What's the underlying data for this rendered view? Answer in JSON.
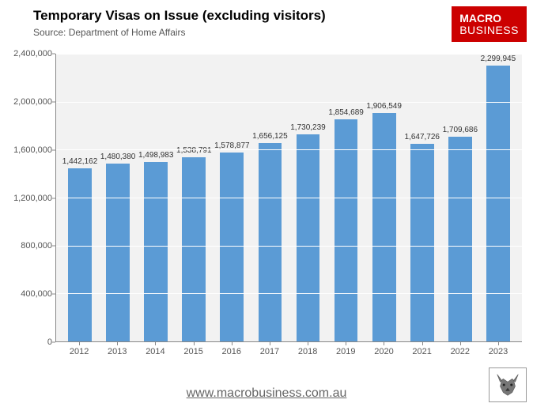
{
  "header": {
    "title": "Temporary Visas on Issue (excluding visitors)",
    "title_fontsize": 17,
    "subtitle": "Source: Department of Home Affairs",
    "subtitle_fontsize": 12
  },
  "logo": {
    "line1": "MACRO",
    "line2": "BUSINESS",
    "bg": "#cc0000",
    "fg": "#ffffff"
  },
  "chart": {
    "type": "bar",
    "categories": [
      "2012",
      "2013",
      "2014",
      "2015",
      "2016",
      "2017",
      "2018",
      "2019",
      "2020",
      "2021",
      "2022",
      "2023"
    ],
    "values": [
      1442162,
      1480380,
      1498983,
      1538791,
      1578877,
      1656125,
      1730239,
      1854689,
      1906549,
      1647726,
      1709686,
      2299945
    ],
    "value_labels": [
      "1,442,162",
      "1,480,380",
      "1,498,983",
      "1,538,791",
      "1,578,877",
      "1,656,125",
      "1,730,239",
      "1,854,689",
      "1,906,549",
      "1,647,726",
      "1,709,686",
      "2,299,945"
    ],
    "bar_color": "#5b9bd5",
    "plot_bg": "#f2f2f2",
    "grid_color": "#ffffff",
    "axis_color": "#888888",
    "ylim": [
      0,
      2400000
    ],
    "ytick_step": 400000,
    "ytick_labels": [
      "0",
      "400,000",
      "800,000",
      "1,200,000",
      "1,600,000",
      "2,000,000",
      "2,400,000"
    ],
    "label_fontsize": 10,
    "tick_fontsize": 11,
    "bar_width": 0.62
  },
  "footer": {
    "url": "www.macrobusiness.com.au"
  }
}
